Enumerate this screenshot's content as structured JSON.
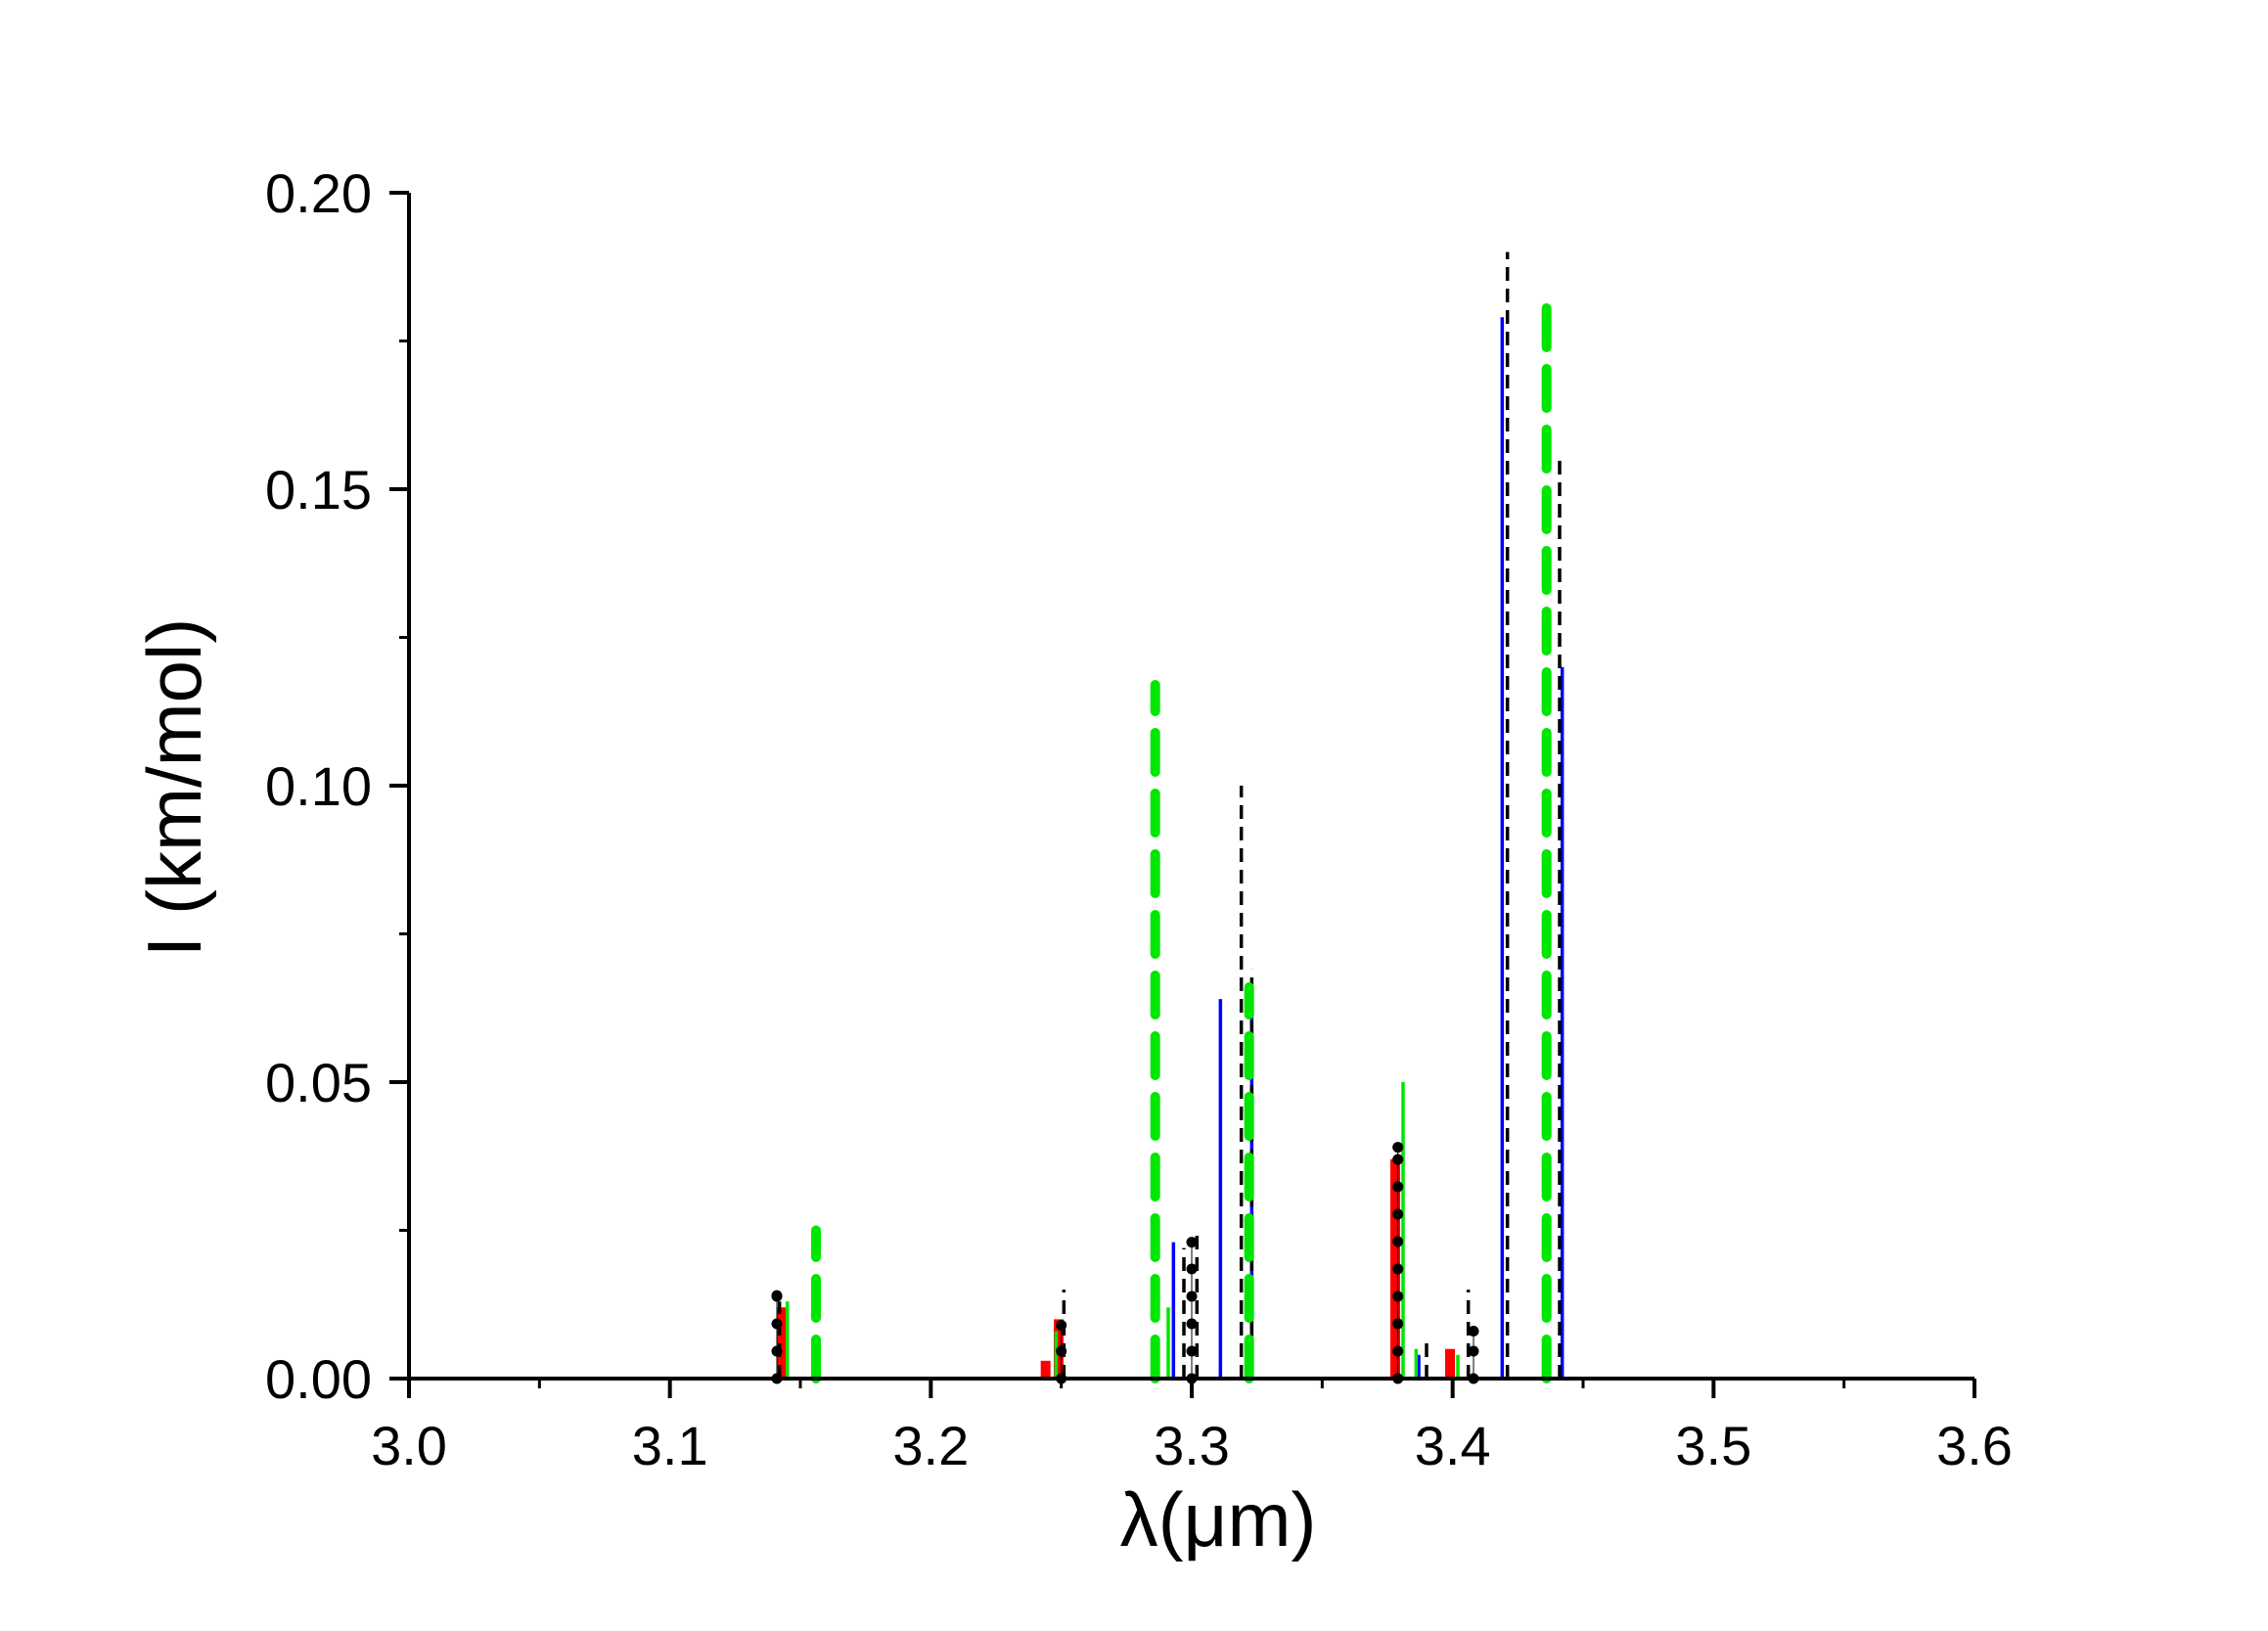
{
  "chart_data": {
    "type": "bar",
    "title": "",
    "xlabel": "λ(μm)",
    "ylabel": "I (km/mol)",
    "xlim": [
      3.0,
      3.6
    ],
    "ylim": [
      0.0,
      0.2
    ],
    "xticks": [
      "3.0",
      "3.1",
      "3.2",
      "3.3",
      "3.4",
      "3.5",
      "3.6"
    ],
    "yticks": [
      "0.00",
      "0.05",
      "0.10",
      "0.15",
      "0.20"
    ],
    "grid": false,
    "legend": "none",
    "series": [
      {
        "color": "#ff0000",
        "style": "solid-thick",
        "points": [
          {
            "x": 3.143,
            "y": 0.012
          },
          {
            "x": 3.244,
            "y": 0.003
          },
          {
            "x": 3.249,
            "y": 0.01
          },
          {
            "x": 3.378,
            "y": 0.037
          },
          {
            "x": 3.399,
            "y": 0.005
          }
        ]
      },
      {
        "color": "#0000ff",
        "style": "solid-thin",
        "points": [
          {
            "x": 3.293,
            "y": 0.023
          },
          {
            "x": 3.311,
            "y": 0.064
          },
          {
            "x": 3.323,
            "y": 0.063
          },
          {
            "x": 3.387,
            "y": 0.004
          },
          {
            "x": 3.419,
            "y": 0.179
          },
          {
            "x": 3.442,
            "y": 0.12
          }
        ]
      },
      {
        "color": "#000000",
        "style": "dashed",
        "points": [
          {
            "x": 3.142,
            "y": 0.013
          },
          {
            "x": 3.251,
            "y": 0.015
          },
          {
            "x": 3.297,
            "y": 0.022
          },
          {
            "x": 3.302,
            "y": 0.025
          },
          {
            "x": 3.319,
            "y": 0.1
          },
          {
            "x": 3.323,
            "y": 0.069
          },
          {
            "x": 3.39,
            "y": 0.006
          },
          {
            "x": 3.406,
            "y": 0.015
          },
          {
            "x": 3.421,
            "y": 0.19
          },
          {
            "x": 3.441,
            "y": 0.156
          }
        ]
      },
      {
        "color": "#00e600",
        "style": "dashed-thick",
        "points": [
          {
            "x": 3.156,
            "y": 0.025
          },
          {
            "x": 3.286,
            "y": 0.117
          },
          {
            "x": 3.322,
            "y": 0.066
          },
          {
            "x": 3.436,
            "y": 0.183
          }
        ]
      },
      {
        "color": "#00e600",
        "style": "solid-thin",
        "points": [
          {
            "x": 3.145,
            "y": 0.013
          },
          {
            "x": 3.248,
            "y": 0.008
          },
          {
            "x": 3.291,
            "y": 0.012
          },
          {
            "x": 3.381,
            "y": 0.05
          },
          {
            "x": 3.386,
            "y": 0.005
          },
          {
            "x": 3.402,
            "y": 0.004
          }
        ]
      },
      {
        "color": "#000000",
        "style": "dotted",
        "points": [
          {
            "x": 3.141,
            "y": 0.014
          },
          {
            "x": 3.25,
            "y": 0.009
          },
          {
            "x": 3.3,
            "y": 0.023
          },
          {
            "x": 3.379,
            "y": 0.039
          },
          {
            "x": 3.408,
            "y": 0.008
          }
        ]
      }
    ]
  }
}
